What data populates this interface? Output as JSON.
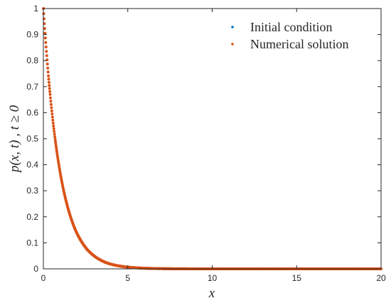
{
  "chart_data": {
    "type": "scatter",
    "title": "",
    "xlabel": "x",
    "ylabel": "p(x, t) , t ≥ 0",
    "xlim": [
      0,
      20
    ],
    "ylim": [
      0,
      1
    ],
    "xticks": [
      "0",
      "5",
      "10",
      "15",
      "20"
    ],
    "yticks": [
      "0",
      "0.1",
      "0.2",
      "0.3",
      "0.4",
      "0.5",
      "0.6",
      "0.7",
      "0.8",
      "0.9",
      "1"
    ],
    "grid": false,
    "legend_position": "top-right",
    "series": [
      {
        "name": "Initial condition",
        "color": "#0072BD",
        "x": [
          0,
          0.1,
          0.2,
          0.3,
          0.4,
          0.5,
          0.6,
          0.7,
          0.8,
          0.9,
          1,
          1.2,
          1.4,
          1.6,
          1.8,
          2,
          2.2,
          2.4,
          2.6,
          2.8,
          3,
          3.3,
          3.6,
          4,
          4.5,
          5,
          5.5,
          6,
          6.5,
          7,
          8,
          9,
          10,
          11,
          12,
          13,
          14,
          15,
          16,
          17,
          18,
          19,
          20
        ],
        "y": [
          1,
          0.905,
          0.819,
          0.741,
          0.67,
          0.607,
          0.549,
          0.497,
          0.449,
          0.407,
          0.368,
          0.301,
          0.247,
          0.202,
          0.165,
          0.135,
          0.111,
          0.091,
          0.074,
          0.061,
          0.05,
          0.037,
          0.027,
          0.018,
          0.011,
          0.0067,
          0.0041,
          0.0025,
          0.0015,
          0.0009,
          0.0003,
          0.0001,
          0,
          0,
          0,
          0,
          0,
          0,
          0,
          0,
          0,
          0,
          0
        ]
      },
      {
        "name": "Numerical solution",
        "color": "#D95319",
        "x": [
          0,
          0.1,
          0.2,
          0.3,
          0.4,
          0.5,
          0.6,
          0.7,
          0.8,
          0.9,
          1,
          1.2,
          1.4,
          1.6,
          1.8,
          2,
          2.2,
          2.4,
          2.6,
          2.8,
          3,
          3.3,
          3.6,
          4,
          4.5,
          5,
          5.5,
          6,
          6.5,
          7,
          8,
          9,
          10,
          11,
          12,
          13,
          14,
          15,
          16,
          17,
          18,
          19,
          20
        ],
        "y": [
          1,
          0.905,
          0.819,
          0.741,
          0.67,
          0.607,
          0.549,
          0.497,
          0.449,
          0.407,
          0.368,
          0.301,
          0.247,
          0.202,
          0.165,
          0.135,
          0.111,
          0.091,
          0.074,
          0.061,
          0.05,
          0.037,
          0.027,
          0.018,
          0.011,
          0.0067,
          0.0041,
          0.0025,
          0.0015,
          0.0009,
          0.0003,
          0.0001,
          0,
          0,
          0,
          0,
          0,
          0,
          0,
          0,
          0,
          0,
          0
        ]
      }
    ]
  }
}
